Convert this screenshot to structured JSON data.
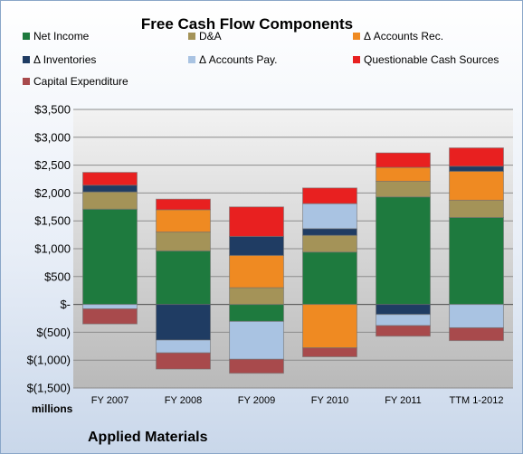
{
  "chart_data": {
    "type": "bar",
    "stacked": true,
    "title": "Free Cash Flow Components",
    "units_label": "millions",
    "company": "Applied Materials",
    "categories": [
      "FY 2007",
      "FY 2008",
      "FY 2009",
      "FY 2010",
      "FY 2011",
      "TTM 1-2012"
    ],
    "ylim": [
      -1500,
      3500
    ],
    "yticks": [
      3500,
      3000,
      2500,
      2000,
      1500,
      1000,
      500,
      0,
      -500,
      -1000,
      -1500
    ],
    "ytick_labels": [
      "$3,500",
      "$3,000",
      "$2,500",
      "$2,000",
      "$1,500",
      "$1,000",
      "$500",
      "$-",
      "$(500)",
      "$(1,000)",
      "$(1,500)"
    ],
    "grid": true,
    "legend_position": "top",
    "series": [
      {
        "name": "Net Income",
        "color": "#1e7a3e",
        "values": [
          1710,
          960,
          -305,
          940,
          1930,
          1560
        ]
      },
      {
        "name": "D&A",
        "color": "#a49358",
        "values": [
          310,
          340,
          300,
          300,
          280,
          310
        ]
      },
      {
        "name": "Δ Accounts Rec.",
        "color": "#ef8a22",
        "values": [
          0,
          400,
          580,
          -780,
          250,
          520
        ]
      },
      {
        "name": "Δ Inventories",
        "color": "#1f3c63",
        "values": [
          120,
          -640,
          340,
          120,
          -180,
          90
        ]
      },
      {
        "name": "Δ Accounts Pay.",
        "color": "#a9c3e2",
        "values": [
          -80,
          -230,
          -680,
          450,
          -200,
          -420
        ]
      },
      {
        "name": "Questionable Cash Sources",
        "color": "#e82020",
        "values": [
          230,
          190,
          530,
          280,
          260,
          330
        ]
      },
      {
        "name": "Capital Expenditure",
        "color": "#a84a4c",
        "values": [
          -270,
          -290,
          -250,
          -160,
          -190,
          -230
        ]
      }
    ]
  }
}
